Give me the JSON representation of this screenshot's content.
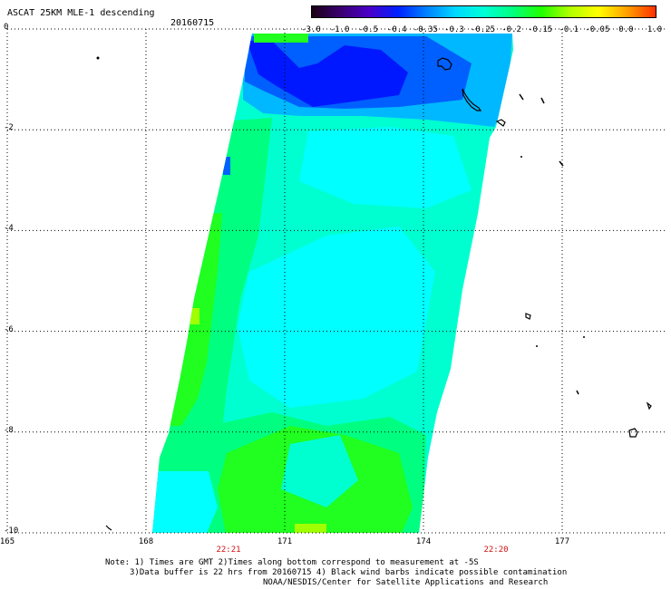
{
  "header": {
    "title": "ASCAT 25KM MLE-1 descending",
    "date": "20160715"
  },
  "colorbar": {
    "tick_labels": [
      "-3.0",
      "-1.0",
      "-0.5",
      "-0.4",
      "-0.35",
      "-0.3",
      "-0.25",
      "-0.2",
      "-0.15",
      "-0.1",
      "-0.05",
      "0.0",
      "1.0"
    ],
    "colors": [
      "#1a0014",
      "#3a0070",
      "#4a00c8",
      "#0020ff",
      "#0080ff",
      "#00d8ff",
      "#00ffd8",
      "#00ff80",
      "#20ff00",
      "#b0ff00",
      "#ffff00",
      "#ffa000",
      "#ff3000"
    ]
  },
  "map": {
    "lat_labels": [
      "0",
      "-2",
      "-4",
      "-6",
      "-8",
      "-10"
    ],
    "lon_labels": [
      "165",
      "168",
      "171",
      "174",
      "177"
    ],
    "time_labels": [
      "22:21",
      "22:20"
    ],
    "grid": true,
    "swath_colors": {
      "deep_blue": "#0018ff",
      "blue": "#0060ff",
      "light_blue": "#00b8ff",
      "cyan": "#00ffff",
      "aqua": "#00ffd0",
      "green": "#00ff80",
      "bright_green": "#20ff20",
      "yellow_green": "#a0ff00",
      "land": "#000000"
    }
  },
  "notes": [
    "Note: 1) Times are GMT 2)Times along bottom correspond to measurement at -5S",
    "3)Data buffer is 22 hrs from 20160715 4) Black wind barbs indicate possible contamination",
    "NOAA/NESDIS/Center for Satellite Applications and Research"
  ]
}
